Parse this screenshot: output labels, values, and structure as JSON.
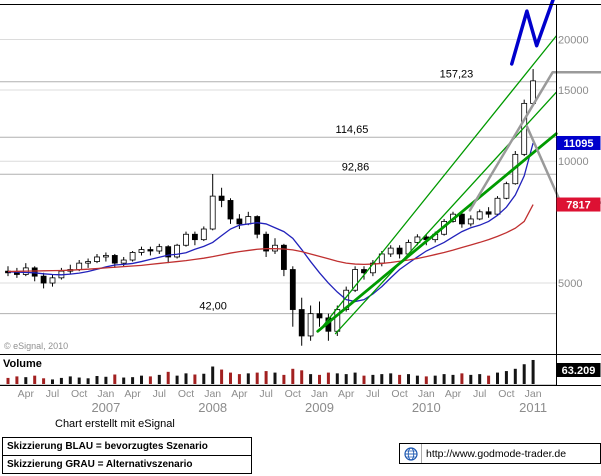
{
  "chart_data": {
    "type": "candlestick",
    "x_unit": "month",
    "categories": [
      "2006-02",
      "2006-03",
      "2006-04",
      "2006-05",
      "2006-06",
      "2006-07",
      "2006-08",
      "2006-09",
      "2006-10",
      "2006-11",
      "2006-12",
      "2007-01",
      "2007-02",
      "2007-03",
      "2007-04",
      "2007-05",
      "2007-06",
      "2007-07",
      "2007-08",
      "2007-09",
      "2007-10",
      "2007-11",
      "2007-12",
      "2008-01",
      "2008-02",
      "2008-03",
      "2008-04",
      "2008-05",
      "2008-06",
      "2008-07",
      "2008-08",
      "2008-09",
      "2008-10",
      "2008-11",
      "2008-12",
      "2009-01",
      "2009-02",
      "2009-03",
      "2009-04",
      "2009-05",
      "2009-06",
      "2009-07",
      "2009-08",
      "2009-09",
      "2009-10",
      "2009-11",
      "2009-12",
      "2010-01",
      "2010-02",
      "2010-03",
      "2010-04",
      "2010-05",
      "2010-06",
      "2010-07",
      "2010-08",
      "2010-09",
      "2010-10",
      "2010-11",
      "2010-12",
      "2011-01"
    ],
    "ohlc": [
      [
        5350,
        5500,
        5200,
        5300
      ],
      [
        5300,
        5450,
        5150,
        5250
      ],
      [
        5250,
        5600,
        5200,
        5450
      ],
      [
        5450,
        5500,
        5050,
        5200
      ],
      [
        5200,
        5300,
        4850,
        5000
      ],
      [
        5000,
        5250,
        4900,
        5150
      ],
      [
        5150,
        5450,
        5100,
        5350
      ],
      [
        5350,
        5550,
        5250,
        5400
      ],
      [
        5400,
        5700,
        5350,
        5600
      ],
      [
        5600,
        5750,
        5450,
        5650
      ],
      [
        5650,
        5900,
        5600,
        5800
      ],
      [
        5800,
        5950,
        5650,
        5850
      ],
      [
        5850,
        5900,
        5450,
        5600
      ],
      [
        5600,
        5800,
        5500,
        5700
      ],
      [
        5700,
        6000,
        5650,
        5950
      ],
      [
        5950,
        6150,
        5850,
        6050
      ],
      [
        6050,
        6150,
        5850,
        6000
      ],
      [
        6000,
        6250,
        5900,
        6150
      ],
      [
        6150,
        6200,
        5600,
        5800
      ],
      [
        5800,
        6250,
        5750,
        6200
      ],
      [
        6200,
        6700,
        6150,
        6600
      ],
      [
        6600,
        6700,
        6200,
        6400
      ],
      [
        6400,
        6900,
        6350,
        6800
      ],
      [
        6800,
        9300,
        6750,
        8200
      ],
      [
        8200,
        8600,
        7700,
        8000
      ],
      [
        8000,
        8100,
        7000,
        7200
      ],
      [
        7200,
        7400,
        6800,
        7000
      ],
      [
        7000,
        7500,
        6950,
        7300
      ],
      [
        7300,
        7350,
        6450,
        6600
      ],
      [
        6600,
        6700,
        5800,
        6000
      ],
      [
        6000,
        6450,
        5900,
        6200
      ],
      [
        6200,
        6250,
        5200,
        5400
      ],
      [
        5400,
        5500,
        3900,
        4300
      ],
      [
        4300,
        4600,
        3500,
        3700
      ],
      [
        3700,
        4400,
        3600,
        4200
      ],
      [
        4200,
        4500,
        3900,
        4100
      ],
      [
        4100,
        4200,
        3600,
        3800
      ],
      [
        3800,
        4400,
        3700,
        4300
      ],
      [
        4300,
        4900,
        4250,
        4800
      ],
      [
        4800,
        5500,
        4750,
        5400
      ],
      [
        5400,
        5500,
        5100,
        5300
      ],
      [
        5300,
        5700,
        5200,
        5600
      ],
      [
        5600,
        6000,
        5500,
        5900
      ],
      [
        5900,
        6200,
        5800,
        6100
      ],
      [
        6100,
        6200,
        5750,
        5900
      ],
      [
        5900,
        6400,
        5850,
        6300
      ],
      [
        6300,
        6600,
        6200,
        6500
      ],
      [
        6500,
        6600,
        6200,
        6400
      ],
      [
        6400,
        6700,
        6300,
        6600
      ],
      [
        6600,
        7200,
        6550,
        7100
      ],
      [
        7100,
        7500,
        7050,
        7400
      ],
      [
        7400,
        7450,
        6850,
        7000
      ],
      [
        7000,
        7350,
        6900,
        7200
      ],
      [
        7200,
        7600,
        7150,
        7500
      ],
      [
        7500,
        7700,
        7250,
        7400
      ],
      [
        7400,
        8200,
        7350,
        8100
      ],
      [
        8100,
        8900,
        8050,
        8800
      ],
      [
        8800,
        10600,
        8750,
        10400
      ],
      [
        10400,
        14200,
        10300,
        13900
      ],
      [
        13900,
        16900,
        13700,
        15800
      ]
    ],
    "volume": [
      16,
      20,
      18,
      22,
      15,
      12,
      16,
      20,
      17,
      15,
      21,
      19,
      25,
      17,
      18,
      22,
      20,
      24,
      32,
      22,
      28,
      25,
      27,
      46,
      38,
      30,
      26,
      28,
      30,
      34,
      30,
      24,
      40,
      36,
      26,
      24,
      30,
      28,
      26,
      30,
      22,
      24,
      26,
      28,
      24,
      26,
      22,
      20,
      22,
      26,
      24,
      28,
      24,
      26,
      22,
      30,
      34,
      40,
      52,
      63.209
    ],
    "volume_label": "Volume",
    "volume_last_label": "63.209",
    "y_axis": {
      "scale": "log",
      "ticks": [
        20000,
        15000,
        10000,
        5000
      ]
    },
    "x_axis": {
      "month_ticks": [
        {
          "i": 2,
          "t": "Apr"
        },
        {
          "i": 5,
          "t": "Jul"
        },
        {
          "i": 8,
          "t": "Oct"
        },
        {
          "i": 11,
          "t": "Jan"
        },
        {
          "i": 14,
          "t": "Apr"
        },
        {
          "i": 17,
          "t": "Jul"
        },
        {
          "i": 20,
          "t": "Oct"
        },
        {
          "i": 23,
          "t": "Jan"
        },
        {
          "i": 26,
          "t": "Apr"
        },
        {
          "i": 29,
          "t": "Jul"
        },
        {
          "i": 32,
          "t": "Oct"
        },
        {
          "i": 35,
          "t": "Jan"
        },
        {
          "i": 38,
          "t": "Apr"
        },
        {
          "i": 41,
          "t": "Jul"
        },
        {
          "i": 44,
          "t": "Oct"
        },
        {
          "i": 47,
          "t": "Jan"
        },
        {
          "i": 50,
          "t": "Apr"
        },
        {
          "i": 53,
          "t": "Jul"
        },
        {
          "i": 56,
          "t": "Oct"
        },
        {
          "i": 59,
          "t": "Jan"
        }
      ],
      "year_ticks": [
        {
          "i": 11,
          "t": "2007"
        },
        {
          "i": 23,
          "t": "2008"
        },
        {
          "i": 35,
          "t": "2009"
        },
        {
          "i": 47,
          "t": "2010"
        },
        {
          "i": 59,
          "t": "2011"
        }
      ]
    },
    "levels": [
      {
        "price": 15723,
        "label": "157,23",
        "label_index": 48.5
      },
      {
        "price": 11465,
        "label": "114,65",
        "label_index": 36.8
      },
      {
        "price": 9286,
        "label": "92,86",
        "label_index": 37.5
      },
      {
        "price": 4200,
        "label": "42,00",
        "label_index": 21.5
      }
    ],
    "series": [
      {
        "name": "ma-fast-blue",
        "color": "#2222bb",
        "last_price_label": "11095",
        "box_color": "#0000cc",
        "values": [
          5330,
          5320,
          5310,
          5300,
          5270,
          5250,
          5240,
          5260,
          5290,
          5340,
          5410,
          5480,
          5540,
          5560,
          5590,
          5650,
          5720,
          5790,
          5860,
          5890,
          5940,
          6060,
          6160,
          6300,
          6550,
          6800,
          6950,
          7000,
          7050,
          7000,
          6850,
          6700,
          6450,
          6050,
          5650,
          5300,
          5000,
          4750,
          4550,
          4500,
          4550,
          4700,
          4900,
          5150,
          5400,
          5600,
          5800,
          6000,
          6150,
          6300,
          6500,
          6700,
          6850,
          6950,
          7100,
          7350,
          7700,
          8250,
          9200,
          11095
        ]
      },
      {
        "name": "ma-slow-red",
        "color": "#c03030",
        "last_price_label": "7817",
        "box_color": "#dd1133",
        "values": [
          5340,
          5345,
          5350,
          5355,
          5360,
          5365,
          5370,
          5380,
          5395,
          5410,
          5430,
          5450,
          5470,
          5490,
          5510,
          5530,
          5560,
          5590,
          5620,
          5650,
          5680,
          5720,
          5760,
          5810,
          5870,
          5930,
          5980,
          6020,
          6060,
          6080,
          6080,
          6070,
          6040,
          5980,
          5900,
          5820,
          5740,
          5660,
          5600,
          5570,
          5560,
          5570,
          5590,
          5620,
          5660,
          5700,
          5750,
          5810,
          5880,
          5950,
          6030,
          6120,
          6210,
          6300,
          6400,
          6520,
          6660,
          6830,
          7100,
          7817
        ]
      }
    ],
    "annotations": [
      {
        "name": "green-trendline-main",
        "color": "#009a00",
        "width": 2.8,
        "points": [
          [
            34.8,
            3800
          ],
          [
            61.6,
            11700
          ]
        ]
      },
      {
        "name": "green-trendline-upper",
        "color": "#009a00",
        "width": 1.3,
        "points": [
          [
            35.0,
            3820
          ],
          [
            61.6,
            20400
          ]
        ]
      },
      {
        "name": "green-trendline-mid",
        "color": "#009a00",
        "width": 1.3,
        "points": [
          [
            36.8,
            3750
          ],
          [
            61.6,
            14800
          ]
        ]
      },
      {
        "name": "gray-alt-scenario-up",
        "color": "#9a9a9a",
        "width": 2.5,
        "points": [
          [
            51.9,
            7560
          ],
          [
            61.2,
            16600
          ],
          [
            66.6,
            16600
          ]
        ]
      },
      {
        "name": "gray-alt-scenario-down",
        "color": "#9a9a9a",
        "width": 2.5,
        "points": [
          [
            58.3,
            12200
          ],
          [
            62.1,
            7900
          ],
          [
            66.6,
            7900
          ]
        ]
      },
      {
        "name": "blue-preferred-scenario",
        "color": "#0000cc",
        "width": 3.5,
        "points": [
          [
            56.6,
            17400
          ],
          [
            58.3,
            23500
          ],
          [
            59.4,
            19300
          ],
          [
            61.5,
            26000
          ]
        ]
      }
    ]
  },
  "footer": {
    "credit": "Chart erstellt mit eSignal",
    "copyright": "© eSignal, 2010"
  },
  "legend": [
    {
      "text": "Skizzierung BLAU = bevorzugtes Szenario"
    },
    {
      "text": "Skizzierung GRAU = Alternativszenario"
    }
  ],
  "statusbar": {
    "url": "http://www.godmode-trader.de",
    "icon": "globe-icon"
  }
}
